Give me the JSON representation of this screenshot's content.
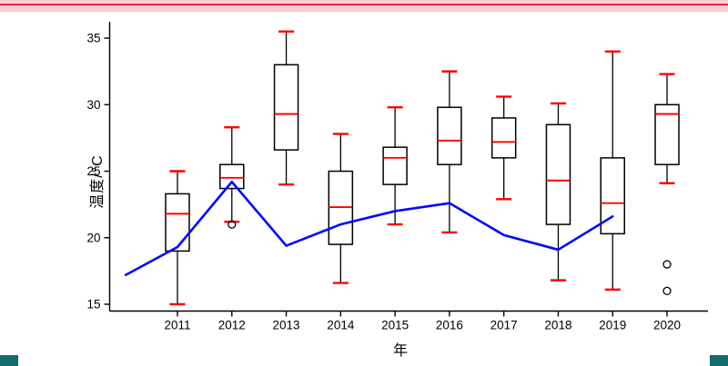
{
  "page": {
    "banner_color": "#f8ccd4",
    "banner_line_color": "#e5234b",
    "corner_color": "#116b6e",
    "background": "#ffffff"
  },
  "chart_data": {
    "type": "boxplot",
    "title": "",
    "xlabel": "年",
    "ylabel": "温度/°C",
    "ylim": [
      14,
      36.5
    ],
    "yticks": [
      15,
      20,
      25,
      30,
      35
    ],
    "categories": [
      "2011",
      "2012",
      "2013",
      "2014",
      "2015",
      "2016",
      "2017",
      "2018",
      "2019",
      "2020"
    ],
    "boxes": [
      {
        "year": "2011",
        "low": 15.0,
        "q1": 19.0,
        "median": 21.8,
        "q3": 23.3,
        "high": 25.0,
        "outliers": []
      },
      {
        "year": "2012",
        "low": 21.2,
        "q1": 23.7,
        "median": 24.5,
        "q3": 25.5,
        "high": 28.3,
        "outliers": [
          21.0
        ]
      },
      {
        "year": "2013",
        "low": 24.0,
        "q1": 26.6,
        "median": 29.3,
        "q3": 33.0,
        "high": 35.5,
        "outliers": []
      },
      {
        "year": "2014",
        "low": 16.6,
        "q1": 19.5,
        "median": 22.3,
        "q3": 25.0,
        "high": 27.8,
        "outliers": []
      },
      {
        "year": "2015",
        "low": 21.0,
        "q1": 24.0,
        "median": 26.0,
        "q3": 26.8,
        "high": 29.8,
        "outliers": []
      },
      {
        "year": "2016",
        "low": 20.4,
        "q1": 25.5,
        "median": 27.3,
        "q3": 29.8,
        "high": 32.5,
        "outliers": []
      },
      {
        "year": "2017",
        "low": 22.9,
        "q1": 26.0,
        "median": 27.2,
        "q3": 29.0,
        "high": 30.6,
        "outliers": []
      },
      {
        "year": "2018",
        "low": 16.8,
        "q1": 21.0,
        "median": 24.3,
        "q3": 28.5,
        "high": 30.1,
        "outliers": []
      },
      {
        "year": "2019",
        "low": 16.1,
        "q1": 20.3,
        "median": 22.6,
        "q3": 26.0,
        "high": 34.0,
        "outliers": []
      },
      {
        "year": "2020",
        "low": 24.1,
        "q1": 25.5,
        "median": 29.3,
        "q3": 30.0,
        "high": 32.3,
        "outliers": [
          18.0,
          16.0
        ]
      }
    ],
    "trend_line": {
      "name": "trend",
      "color": "#0008ff",
      "width": 2.6,
      "points": [
        {
          "x": 2010.05,
          "y": 17.2
        },
        {
          "x": 2011,
          "y": 19.3
        },
        {
          "x": 2012,
          "y": 24.2
        },
        {
          "x": 2013,
          "y": 19.4
        },
        {
          "x": 2014,
          "y": 21.0
        },
        {
          "x": 2015,
          "y": 22.0
        },
        {
          "x": 2016,
          "y": 22.6
        },
        {
          "x": 2017,
          "y": 20.2
        },
        {
          "x": 2018,
          "y": 19.1
        },
        {
          "x": 2019,
          "y": 21.6
        }
      ]
    },
    "style": {
      "box_color": "#000000",
      "median_color": "#ff0000",
      "cap_color": "#ff0000",
      "whisker_color": "#000000",
      "outlier_color": "#000000",
      "axis_color": "#000000",
      "tick_font_size": 13.5,
      "grid": false,
      "legend": "none"
    }
  }
}
